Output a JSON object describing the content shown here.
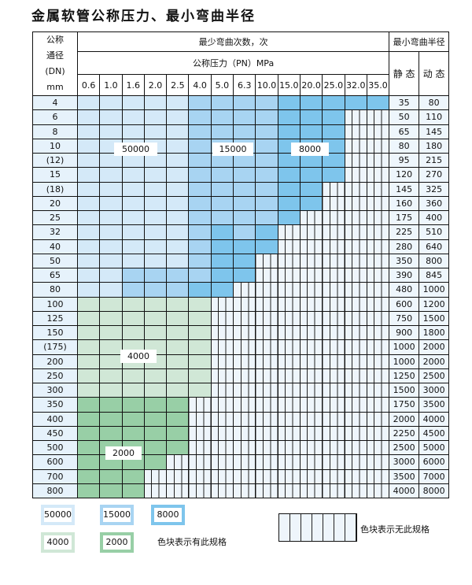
{
  "title": "金属软管公称压力、最小弯曲半径",
  "header": {
    "dn_label_lines": [
      "公称",
      "通径",
      "(DN)",
      "mm"
    ],
    "cycles_label": "最少弯曲次数，次",
    "pressure_label": "公称压力（PN）MPa",
    "radius_label": "最小弯曲半径",
    "static_label": "静 态",
    "dynamic_label": "动 态",
    "pressures": [
      "0.6",
      "1.0",
      "1.6",
      "2.0",
      "2.5",
      "4.0",
      "5.0",
      "6.3",
      "10.0",
      "15.0",
      "20.0",
      "25.0",
      "32.0",
      "35.0"
    ]
  },
  "colors": {
    "L": "#d4e9f8",
    "M": "#a8d4f2",
    "D": "#7ec5ec",
    "g": "#d0e7d6",
    "G": "#98cfa6",
    "x": "hatched (no spec)"
  },
  "rows": [
    {
      "dn": "4",
      "cells": "LLLLLMMMMDDDDD",
      "static": "35",
      "dynamic": "80"
    },
    {
      "dn": "6",
      "cells": "LLLLLMMMMDDDxx",
      "static": "50",
      "dynamic": "110"
    },
    {
      "dn": "8",
      "cells": "LLLLLMMMMDDDxx",
      "static": "65",
      "dynamic": "145"
    },
    {
      "dn": "10",
      "cells": "LLLLLMMMMDDDxx",
      "static": "80",
      "dynamic": "180"
    },
    {
      "dn": "(12)",
      "cells": "LLLLLMMMMDDDxx",
      "static": "95",
      "dynamic": "215"
    },
    {
      "dn": "15",
      "cells": "LLLLLMMMMDDDxx",
      "static": "120",
      "dynamic": "270"
    },
    {
      "dn": "(18)",
      "cells": "LLLLLMMMMDDxxx",
      "static": "145",
      "dynamic": "325"
    },
    {
      "dn": "20",
      "cells": "LLLLLMMMMDDxxx",
      "static": "160",
      "dynamic": "360"
    },
    {
      "dn": "25",
      "cells": "LLLLLMMMMDxxxx",
      "static": "175",
      "dynamic": "400"
    },
    {
      "dn": "32",
      "cells": "LLLLLMDMDxxxxx",
      "static": "225",
      "dynamic": "510"
    },
    {
      "dn": "40",
      "cells": "LLLLLMDDDxxxxx",
      "static": "280",
      "dynamic": "640"
    },
    {
      "dn": "50",
      "cells": "LLLLLMDDxxxxxx",
      "static": "350",
      "dynamic": "800"
    },
    {
      "dn": "65",
      "cells": "LLMMMMDDxxxxxx",
      "static": "390",
      "dynamic": "845"
    },
    {
      "dn": "80",
      "cells": "LLMMMDDxxxxxxx",
      "static": "480",
      "dynamic": "1000"
    },
    {
      "dn": "100",
      "cells": "ggggggxxxxxxxx",
      "static": "600",
      "dynamic": "1200"
    },
    {
      "dn": "125",
      "cells": "ggggggxxxxxxxx",
      "static": "750",
      "dynamic": "1500"
    },
    {
      "dn": "150",
      "cells": "ggggggxxxxxxxx",
      "static": "900",
      "dynamic": "1800"
    },
    {
      "dn": "(175)",
      "cells": "ggggggxxxxxxxx",
      "static": "1000",
      "dynamic": "2000"
    },
    {
      "dn": "200",
      "cells": "ggggggxxxxxxxx",
      "static": "1000",
      "dynamic": "2000"
    },
    {
      "dn": "250",
      "cells": "ggggggxxxxxxxx",
      "static": "1250",
      "dynamic": "2500"
    },
    {
      "dn": "300",
      "cells": "ggggggxxxxxxxx",
      "static": "1500",
      "dynamic": "3000"
    },
    {
      "dn": "350",
      "cells": "GGGGGxxxxxxxxx",
      "static": "1750",
      "dynamic": "3500"
    },
    {
      "dn": "400",
      "cells": "GGGGGxxxxxxxxx",
      "static": "2000",
      "dynamic": "4000"
    },
    {
      "dn": "450",
      "cells": "GGGGGxxxxxxxxx",
      "static": "2250",
      "dynamic": "4500"
    },
    {
      "dn": "500",
      "cells": "GGGGGxxxxxxxxx",
      "static": "2500",
      "dynamic": "5000"
    },
    {
      "dn": "600",
      "cells": "GGGGxxxxxxxxxx",
      "static": "3000",
      "dynamic": "6000"
    },
    {
      "dn": "700",
      "cells": "GGGxxxxxxxxxxx",
      "static": "3500",
      "dynamic": "7000"
    },
    {
      "dn": "800",
      "cells": "GGGxxxxxxxxxxx",
      "static": "4000",
      "dynamic": "8000"
    }
  ],
  "region_labels": {
    "l50000": "50000",
    "l15000": "15000",
    "l8000": "8000",
    "l4000": "4000",
    "l2000": "2000"
  },
  "legend": {
    "items": [
      "50000",
      "15000",
      "8000",
      "4000",
      "2000"
    ],
    "has_spec_text": "色块表示有此规格",
    "no_spec_text": "色块表示无此规格"
  }
}
